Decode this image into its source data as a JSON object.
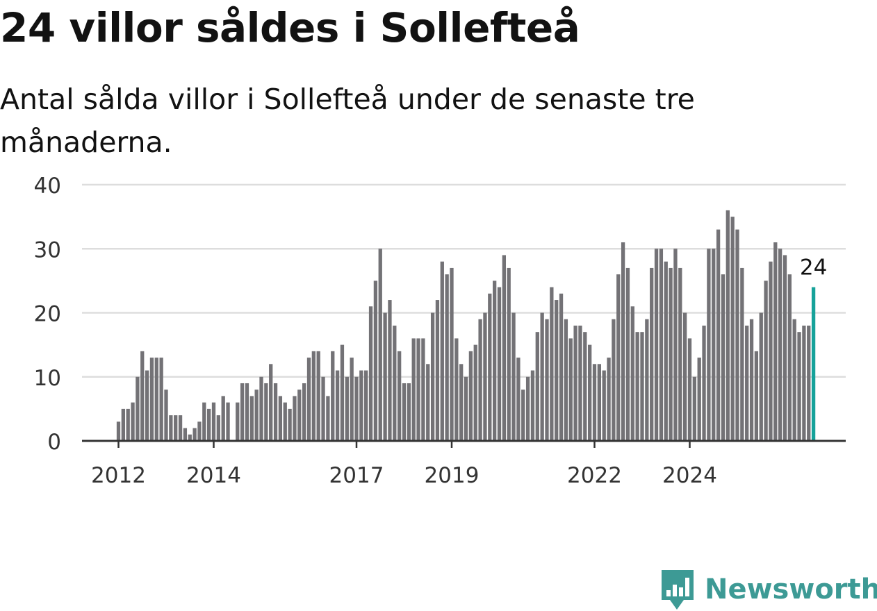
{
  "title": "24 villor såldes i Sollefteå",
  "subtitle": "Antal sålda villor i Sollefteå under de senaste tre månaderna.",
  "brand": {
    "name": "Newsworthy",
    "logo_icon": "bar-chart-speech-bubble-icon"
  },
  "colors": {
    "bar": "#737276",
    "highlight": "#16a29a",
    "grid": "#dddddd",
    "axis": "#333333",
    "brand": "#3d9a95"
  },
  "chart_data": {
    "type": "bar",
    "title": "24 villor såldes i Sollefteå",
    "subtitle": "Antal sålda villor i Sollefteå under de senaste tre månaderna.",
    "xlabel": "",
    "ylabel": "",
    "ylim": [
      0,
      40
    ],
    "yticks": [
      0,
      10,
      20,
      30,
      40
    ],
    "xticks": [
      {
        "label": "2012",
        "index": 0
      },
      {
        "label": "2014",
        "index": 20
      },
      {
        "label": "2017",
        "index": 50
      },
      {
        "label": "2019",
        "index": 70
      },
      {
        "label": "2022",
        "index": 100
      },
      {
        "label": "2024",
        "index": 120
      }
    ],
    "grid": true,
    "start_month": "2012-01",
    "values": [
      3,
      5,
      5,
      6,
      10,
      14,
      11,
      13,
      13,
      13,
      8,
      4,
      4,
      4,
      2,
      1,
      2,
      3,
      6,
      5,
      6,
      4,
      7,
      6,
      null,
      6,
      9,
      9,
      7,
      8,
      10,
      9,
      12,
      9,
      7,
      6,
      5,
      7,
      8,
      9,
      13,
      14,
      14,
      10,
      7,
      14,
      11,
      15,
      10,
      13,
      10,
      11,
      11,
      21,
      25,
      30,
      20,
      22,
      18,
      14,
      9,
      9,
      16,
      16,
      16,
      12,
      20,
      22,
      28,
      26,
      27,
      16,
      12,
      10,
      14,
      15,
      19,
      20,
      23,
      25,
      24,
      29,
      27,
      20,
      13,
      8,
      10,
      11,
      17,
      20,
      19,
      24,
      22,
      23,
      19,
      16,
      18,
      18,
      17,
      15,
      12,
      12,
      11,
      13,
      19,
      26,
      31,
      27,
      21,
      17,
      17,
      19,
      27,
      30,
      30,
      28,
      27,
      30,
      27,
      20,
      16,
      10,
      13,
      18,
      30,
      30,
      33,
      26,
      36,
      35,
      33,
      27,
      18,
      19,
      14,
      20,
      25,
      28,
      31,
      30,
      29,
      26,
      19,
      17,
      18,
      18,
      24
    ],
    "highlight_last": true,
    "annotation": "24"
  }
}
